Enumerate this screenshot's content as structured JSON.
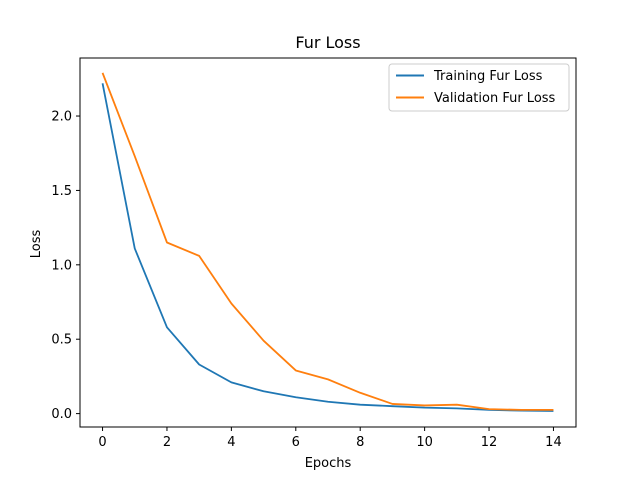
{
  "chart_data": {
    "type": "line",
    "title": "Fur Loss",
    "xlabel": "Epochs",
    "ylabel": "Loss",
    "x": [
      0,
      1,
      2,
      3,
      4,
      5,
      6,
      7,
      8,
      9,
      10,
      11,
      12,
      13,
      14
    ],
    "xlim": [
      -0.7,
      14.7
    ],
    "ylim": [
      -0.09,
      2.39
    ],
    "xticks": [
      0,
      2,
      4,
      6,
      8,
      10,
      12,
      14
    ],
    "xtick_labels": [
      "0",
      "2",
      "4",
      "6",
      "8",
      "10",
      "12",
      "14"
    ],
    "yticks": [
      0.0,
      0.5,
      1.0,
      1.5,
      2.0
    ],
    "ytick_labels": [
      "0.0",
      "0.5",
      "1.0",
      "1.5",
      "2.0"
    ],
    "grid": false,
    "legend_position": "top-right",
    "series": [
      {
        "name": "Training Fur Loss",
        "color": "#1f77b4",
        "values": [
          2.22,
          1.11,
          0.58,
          0.33,
          0.21,
          0.15,
          0.11,
          0.08,
          0.06,
          0.05,
          0.04,
          0.035,
          0.025,
          0.02,
          0.018
        ]
      },
      {
        "name": "Validation Fur Loss",
        "color": "#ff7f0e",
        "values": [
          2.29,
          1.73,
          1.15,
          1.06,
          0.74,
          0.49,
          0.29,
          0.23,
          0.14,
          0.065,
          0.055,
          0.06,
          0.03,
          0.025,
          0.025
        ]
      }
    ]
  }
}
